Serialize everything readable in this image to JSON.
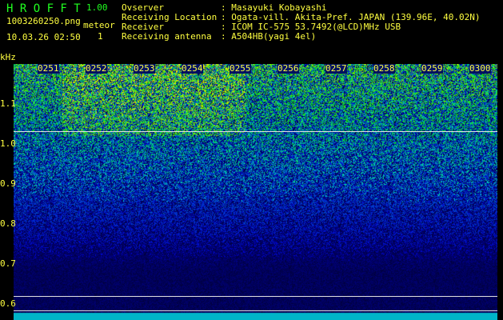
{
  "app": {
    "name": "H R O F F T",
    "version": "1.00"
  },
  "file": "1003260250.png",
  "datetime": "10.03.26 02:50",
  "meteor": {
    "label": "meteor",
    "count": "1"
  },
  "info": [
    {
      "label": "Ovserver",
      "value": ": Masayuki Kobayashi"
    },
    {
      "label": "Receiving Location",
      "value": ": Ogata-vill. Akita-Pref. JAPAN (139.96E, 40.02N)"
    },
    {
      "label": "Receiver",
      "value": ": ICOM IC-575 53.7492(@LCD)MHz USB"
    },
    {
      "label": "Receiving antenna",
      "value": ": A504HB(yagi 4el)"
    }
  ],
  "y_axis": {
    "unit": "kHz",
    "ticks": [
      "1.1",
      "1.0",
      "0.9",
      "0.8",
      "0.7",
      "0.6"
    ]
  },
  "x_axis": {
    "ticks": [
      "0251",
      "0252",
      "0253",
      "0254",
      "0255",
      "0256",
      "0257",
      "0258",
      "0259",
      "0300"
    ]
  },
  "colors": {
    "text": "#ffff40",
    "title": "#20ff20"
  }
}
